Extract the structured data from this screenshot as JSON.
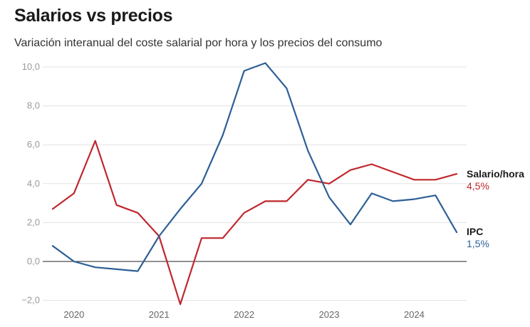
{
  "chart_data": {
    "type": "line",
    "title": "Salarios vs precios",
    "subtitle": "Variación interanual del coste salarial por hora y los precios del consumo",
    "x": [
      "2019Q4",
      "2020Q1",
      "2020Q2",
      "2020Q3",
      "2020Q4",
      "2021Q1",
      "2021Q2",
      "2021Q3",
      "2021Q4",
      "2022Q1",
      "2022Q2",
      "2022Q3",
      "2022Q4",
      "2023Q1",
      "2023Q2",
      "2023Q3",
      "2023Q4",
      "2024Q1",
      "2024Q2",
      "2024Q3"
    ],
    "x_tick_labels": [
      {
        "at": "2020Q1",
        "label": "2020"
      },
      {
        "at": "2021Q1",
        "label": "2021"
      },
      {
        "at": "2022Q1",
        "label": "2022"
      },
      {
        "at": "2023Q1",
        "label": "2023"
      },
      {
        "at": "2024Q1",
        "label": "2024"
      }
    ],
    "y_ticks": [
      {
        "value": -2,
        "label": "−2,0"
      },
      {
        "value": 0,
        "label": "0,0"
      },
      {
        "value": 2,
        "label": "2,0"
      },
      {
        "value": 4,
        "label": "4,0"
      },
      {
        "value": 6,
        "label": "6,0"
      },
      {
        "value": 8,
        "label": "8,0"
      },
      {
        "value": 10,
        "label": "10,0"
      }
    ],
    "ylim": [
      -2.2,
      10.5
    ],
    "xlabel": "",
    "ylabel": "",
    "grid": true,
    "series": [
      {
        "name": "Salario/hora",
        "end_label": "4,5%",
        "color": "#c0272d",
        "values": [
          2.7,
          3.5,
          6.2,
          2.9,
          2.5,
          1.3,
          -2.2,
          1.2,
          1.2,
          2.5,
          3.1,
          3.1,
          4.2,
          4.0,
          4.7,
          5.0,
          4.6,
          4.2,
          4.2,
          4.5
        ]
      },
      {
        "name": "IPC",
        "end_label": "1,5%",
        "color": "#2e5f96",
        "values": [
          0.8,
          0.0,
          -0.3,
          -0.4,
          -0.5,
          1.3,
          2.7,
          4.0,
          6.5,
          9.8,
          10.2,
          8.9,
          5.7,
          3.3,
          1.9,
          3.5,
          3.1,
          3.2,
          3.4,
          1.5
        ]
      }
    ]
  }
}
